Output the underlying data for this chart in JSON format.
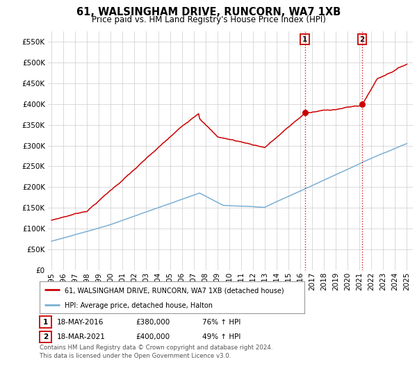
{
  "title": "61, WALSINGHAM DRIVE, RUNCORN, WA7 1XB",
  "subtitle": "Price paid vs. HM Land Registry's House Price Index (HPI)",
  "ylabel_ticks": [
    "£0",
    "£50K",
    "£100K",
    "£150K",
    "£200K",
    "£250K",
    "£300K",
    "£350K",
    "£400K",
    "£450K",
    "£500K",
    "£550K"
  ],
  "ytick_vals": [
    0,
    50000,
    100000,
    150000,
    200000,
    250000,
    300000,
    350000,
    400000,
    450000,
    500000,
    550000
  ],
  "ylim": [
    0,
    575000
  ],
  "xlim_left": 1994.7,
  "xlim_right": 2025.5,
  "marker1_x": 2016.38,
  "marker1_y": 380000,
  "marker2_x": 2021.21,
  "marker2_y": 400000,
  "red_color": "#cc0000",
  "blue_color": "#7bafd4",
  "grid_color": "#cccccc",
  "title_fontsize": 10.5,
  "subtitle_fontsize": 8.5,
  "tick_fontsize": 7.5,
  "legend_line1": "61, WALSINGHAM DRIVE, RUNCORN, WA7 1XB (detached house)",
  "legend_line2": "HPI: Average price, detached house, Halton",
  "footnote": "Contains HM Land Registry data © Crown copyright and database right 2024.\nThis data is licensed under the Open Government Licence v3.0."
}
